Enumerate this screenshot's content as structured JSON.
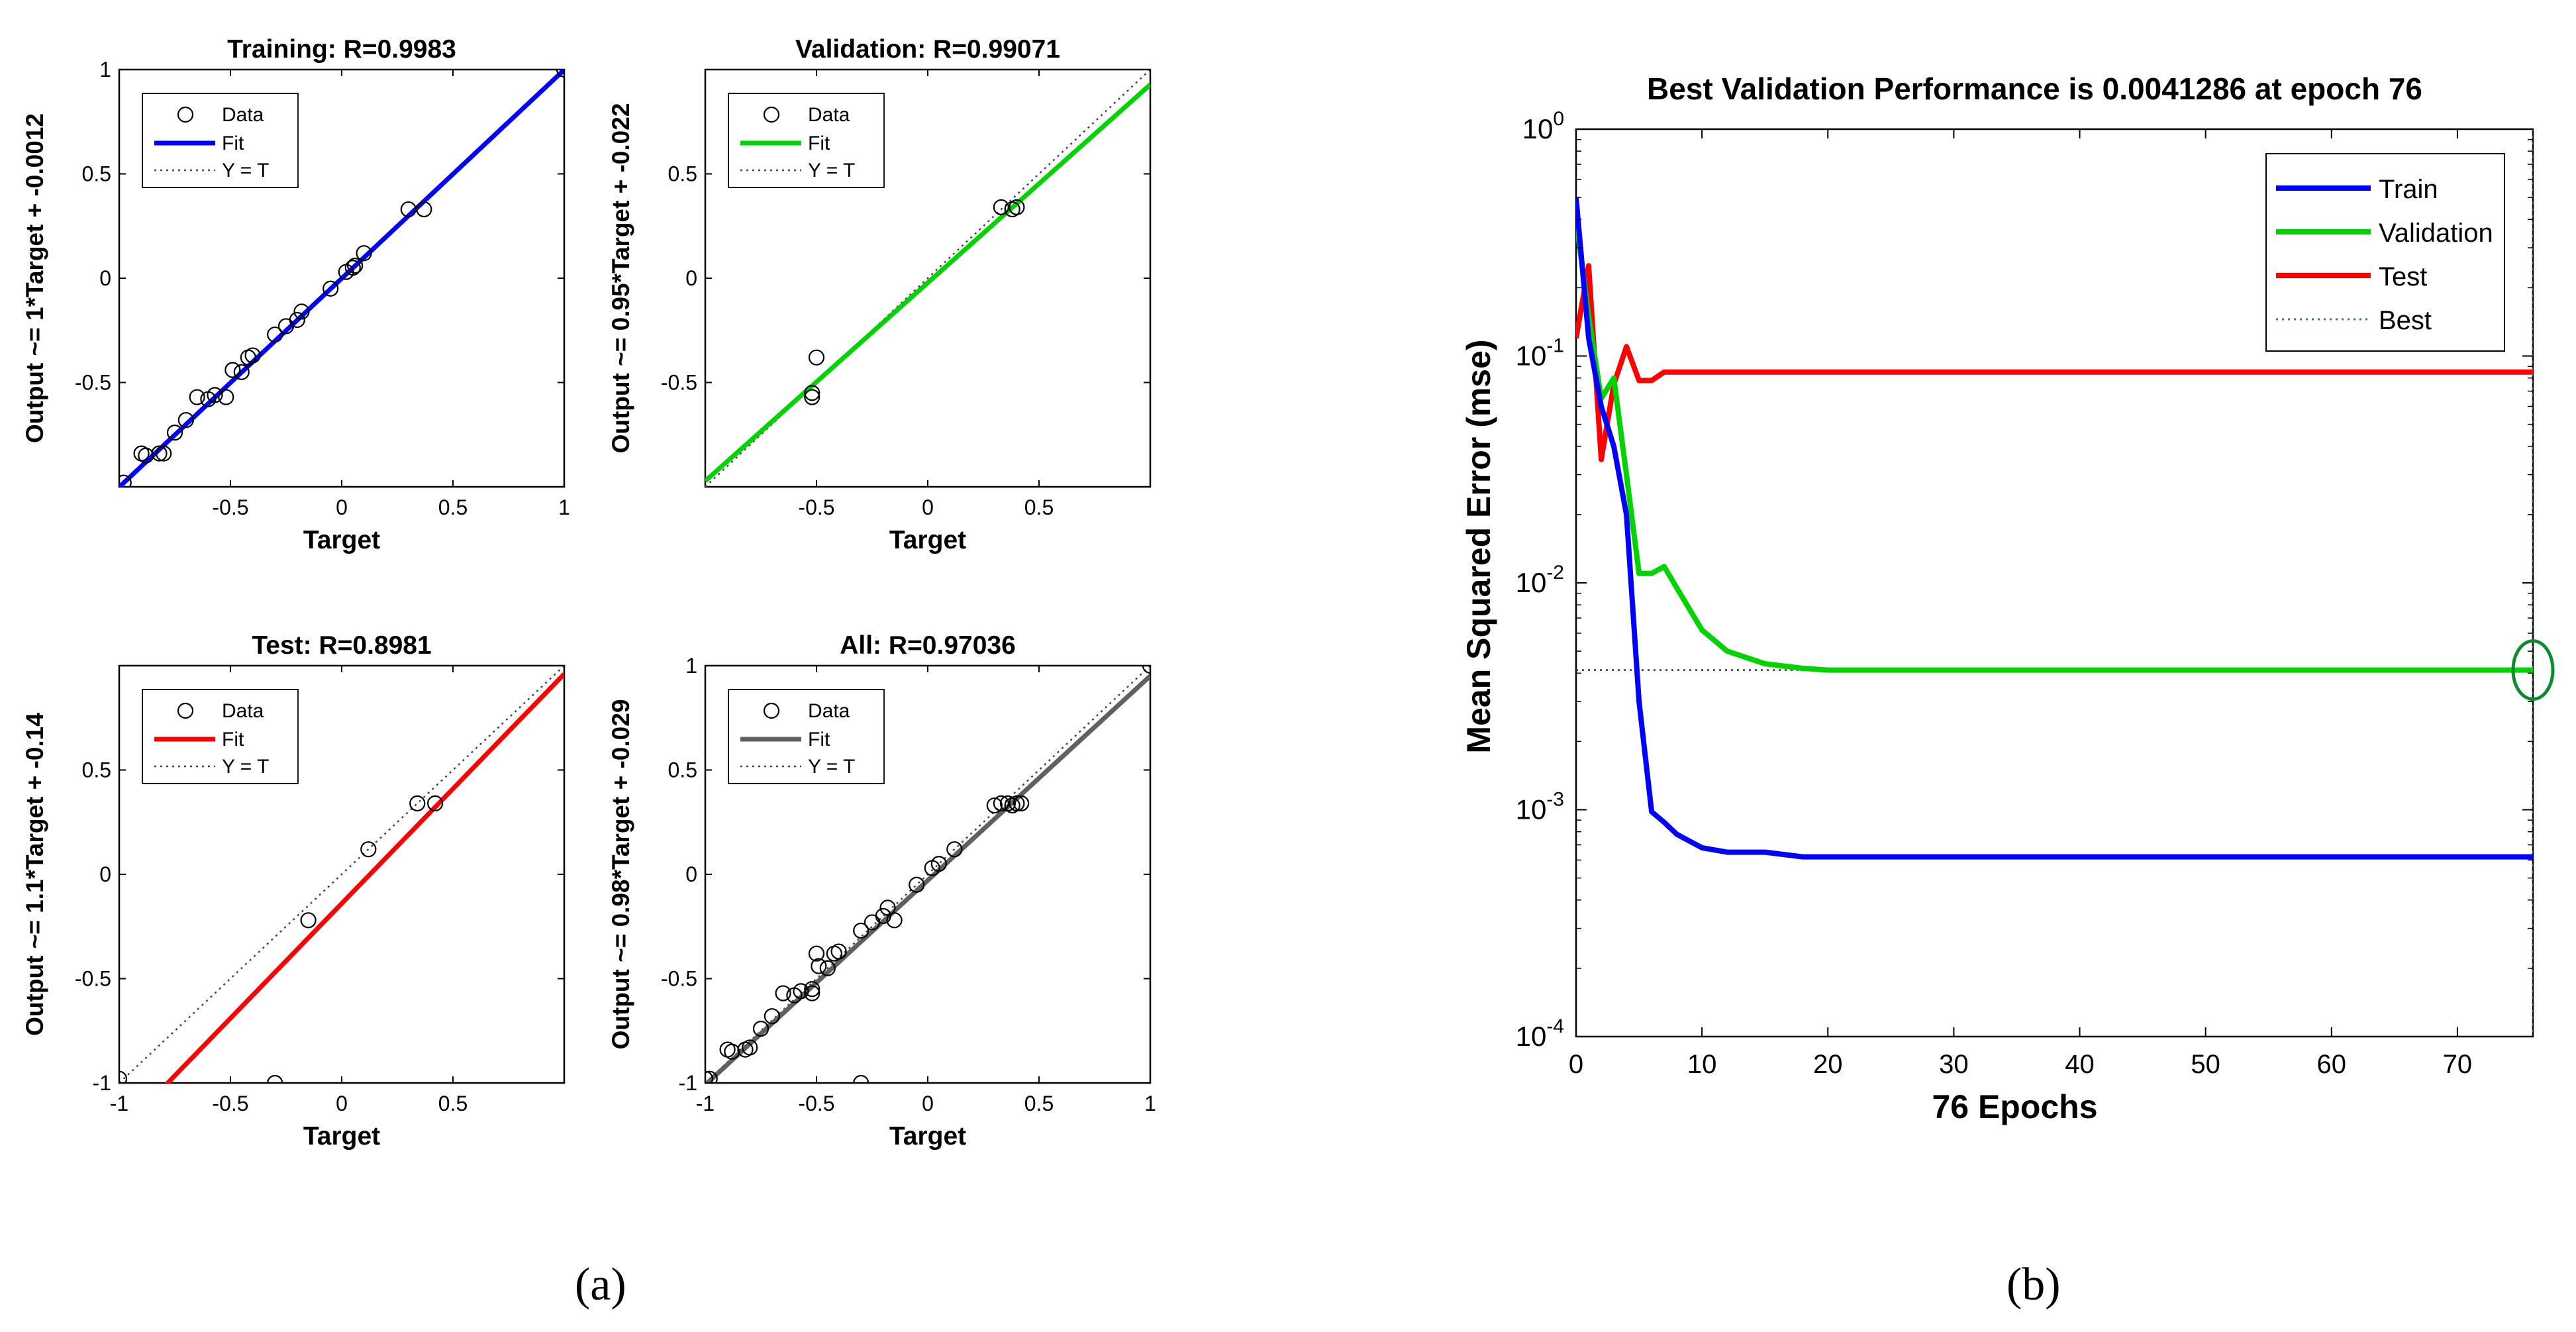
{
  "figure": {
    "label_a": "(a)",
    "label_b": "(b)",
    "colors": {
      "train": "#0000ff",
      "validation": "#00d400",
      "test": "#ff0000",
      "all": "#606060",
      "best": "#2e8b57",
      "axis": "#000000"
    }
  },
  "chart_data": [
    {
      "type": "scatter",
      "title": "Training: R=0.9983",
      "xlabel": "Target",
      "ylabel": "Output ~= 1*Target + -0.0012",
      "xlim": [
        -1,
        1
      ],
      "ylim": [
        -1,
        1
      ],
      "xticks": [
        -0.5,
        0,
        0.5,
        1
      ],
      "yticks": [
        -0.5,
        0,
        0.5,
        1
      ],
      "legend": [
        "Data",
        "Fit",
        "Y = T"
      ],
      "fit": {
        "slope": 1,
        "intercept": -0.0012,
        "color": "#0000ff"
      },
      "points": [
        [
          -0.98,
          -0.98
        ],
        [
          -0.9,
          -0.84
        ],
        [
          -0.88,
          -0.85
        ],
        [
          -0.82,
          -0.84
        ],
        [
          -0.8,
          -0.84
        ],
        [
          -0.75,
          -0.74
        ],
        [
          -0.7,
          -0.68
        ],
        [
          -0.65,
          -0.57
        ],
        [
          -0.6,
          -0.58
        ],
        [
          -0.57,
          -0.56
        ],
        [
          -0.52,
          -0.57
        ],
        [
          -0.49,
          -0.44
        ],
        [
          -0.45,
          -0.45
        ],
        [
          -0.42,
          -0.38
        ],
        [
          -0.4,
          -0.37
        ],
        [
          -0.3,
          -0.27
        ],
        [
          -0.25,
          -0.23
        ],
        [
          -0.2,
          -0.2
        ],
        [
          -0.18,
          -0.16
        ],
        [
          -0.05,
          -0.05
        ],
        [
          0.02,
          0.03
        ],
        [
          0.05,
          0.05
        ],
        [
          0.06,
          0.06
        ],
        [
          0.1,
          0.12
        ],
        [
          0.3,
          0.33
        ],
        [
          0.37,
          0.33
        ],
        [
          1.0,
          1.0
        ]
      ]
    },
    {
      "type": "scatter",
      "title": "Validation: R=0.99071",
      "xlabel": "Target",
      "ylabel": "Output ~= 0.95*Target + -0.022",
      "xlim": [
        -1,
        1
      ],
      "ylim": [
        -1,
        1
      ],
      "xticks": [
        -0.5,
        0,
        0.5
      ],
      "yticks": [
        -0.5,
        0,
        0.5
      ],
      "legend": [
        "Data",
        "Fit",
        "Y = T"
      ],
      "fit": {
        "slope": 0.95,
        "intercept": -0.022,
        "color": "#00d400"
      },
      "points": [
        [
          -0.52,
          -0.55
        ],
        [
          -0.52,
          -0.57
        ],
        [
          -0.5,
          -0.38
        ],
        [
          0.33,
          0.34
        ],
        [
          0.38,
          0.33
        ],
        [
          0.4,
          0.34
        ]
      ]
    },
    {
      "type": "scatter",
      "title": "Test: R=0.8981",
      "xlabel": "Target",
      "ylabel": "Output ~= 1.1*Target + -0.14",
      "xlim": [
        -1,
        1
      ],
      "ylim": [
        -1,
        1
      ],
      "xticks": [
        -1,
        -0.5,
        0,
        0.5
      ],
      "yticks": [
        -1,
        -0.5,
        0,
        0.5
      ],
      "legend": [
        "Data",
        "Fit",
        "Y = T"
      ],
      "fit": {
        "slope": 1.1,
        "intercept": -0.14,
        "color": "#ff0000"
      },
      "points": [
        [
          -1.0,
          -0.98
        ],
        [
          -0.3,
          -1.0
        ],
        [
          -0.15,
          -0.22
        ],
        [
          0.12,
          0.12
        ],
        [
          0.34,
          0.34
        ],
        [
          0.42,
          0.34
        ]
      ]
    },
    {
      "type": "scatter",
      "title": "All: R=0.97036",
      "xlabel": "Target",
      "ylabel": "Output ~= 0.98*Target + -0.029",
      "xlim": [
        -1,
        1
      ],
      "ylim": [
        -1,
        1
      ],
      "xticks": [
        -1,
        -0.5,
        0,
        0.5,
        1
      ],
      "yticks": [
        -1,
        -0.5,
        0,
        0.5,
        1
      ],
      "legend": [
        "Data",
        "Fit",
        "Y = T"
      ],
      "fit": {
        "slope": 0.98,
        "intercept": -0.029,
        "color": "#606060"
      },
      "points": [
        [
          -1.0,
          -0.98
        ],
        [
          -0.98,
          -0.98
        ],
        [
          -0.9,
          -0.84
        ],
        [
          -0.88,
          -0.85
        ],
        [
          -0.82,
          -0.84
        ],
        [
          -0.8,
          -0.83
        ],
        [
          -0.75,
          -0.74
        ],
        [
          -0.7,
          -0.68
        ],
        [
          -0.65,
          -0.57
        ],
        [
          -0.6,
          -0.58
        ],
        [
          -0.57,
          -0.56
        ],
        [
          -0.52,
          -0.55
        ],
        [
          -0.52,
          -0.57
        ],
        [
          -0.5,
          -0.38
        ],
        [
          -0.49,
          -0.44
        ],
        [
          -0.45,
          -0.45
        ],
        [
          -0.42,
          -0.38
        ],
        [
          -0.4,
          -0.37
        ],
        [
          -0.3,
          -1.0
        ],
        [
          -0.3,
          -0.27
        ],
        [
          -0.25,
          -0.23
        ],
        [
          -0.2,
          -0.2
        ],
        [
          -0.18,
          -0.16
        ],
        [
          -0.15,
          -0.22
        ],
        [
          -0.05,
          -0.05
        ],
        [
          0.02,
          0.03
        ],
        [
          0.05,
          0.05
        ],
        [
          0.12,
          0.12
        ],
        [
          0.3,
          0.33
        ],
        [
          0.33,
          0.34
        ],
        [
          0.36,
          0.34
        ],
        [
          0.38,
          0.33
        ],
        [
          0.4,
          0.34
        ],
        [
          0.42,
          0.34
        ],
        [
          1.0,
          1.0
        ]
      ]
    },
    {
      "type": "line",
      "title": "Best Validation Performance is 0.0041286 at epoch 76",
      "xlabel": "76 Epochs",
      "ylabel": "Mean Squared Error  (mse)",
      "yscale": "log",
      "xlim": [
        0,
        76
      ],
      "ylim": [
        0.0001,
        1
      ],
      "xticks": [
        0,
        10,
        20,
        30,
        40,
        50,
        60,
        70
      ],
      "yticks": [
        {
          "value": 1,
          "base": "10",
          "exp": "0"
        },
        {
          "value": 0.1,
          "base": "10",
          "exp": "-1"
        },
        {
          "value": 0.01,
          "base": "10",
          "exp": "-2"
        },
        {
          "value": 0.001,
          "base": "10",
          "exp": "-3"
        },
        {
          "value": 0.0001,
          "base": "10",
          "exp": "-4"
        }
      ],
      "legend_position": "top-right",
      "best": {
        "epoch": 76,
        "value": 0.0041286
      },
      "series": [
        {
          "name": "Train",
          "color": "#0000ff",
          "x": [
            0,
            1,
            2,
            3,
            4,
            5,
            6,
            7,
            8,
            10,
            12,
            15,
            18,
            20,
            76
          ],
          "y": [
            0.5,
            0.12,
            0.06,
            0.04,
            0.02,
            0.003,
            0.00098,
            0.00088,
            0.00078,
            0.00068,
            0.00065,
            0.00065,
            0.00062,
            0.00062,
            0.00062
          ]
        },
        {
          "name": "Validation",
          "color": "#00d400",
          "x": [
            0,
            1,
            2,
            3,
            4,
            5,
            6,
            7,
            8,
            10,
            12,
            15,
            18,
            20,
            76
          ],
          "y": [
            0.4,
            0.15,
            0.065,
            0.08,
            0.03,
            0.011,
            0.011,
            0.0118,
            0.0095,
            0.0062,
            0.005,
            0.0044,
            0.0042,
            0.0041286,
            0.0041286
          ]
        },
        {
          "name": "Test",
          "color": "#ff0000",
          "x": [
            0,
            1,
            2,
            3,
            4,
            5,
            6,
            7,
            8,
            10,
            20,
            76
          ],
          "y": [
            0.12,
            0.25,
            0.035,
            0.075,
            0.11,
            0.078,
            0.078,
            0.085,
            0.085,
            0.085,
            0.085,
            0.085
          ]
        },
        {
          "name": "Best",
          "color": "#2e8b57",
          "style": "dotted"
        }
      ]
    }
  ]
}
